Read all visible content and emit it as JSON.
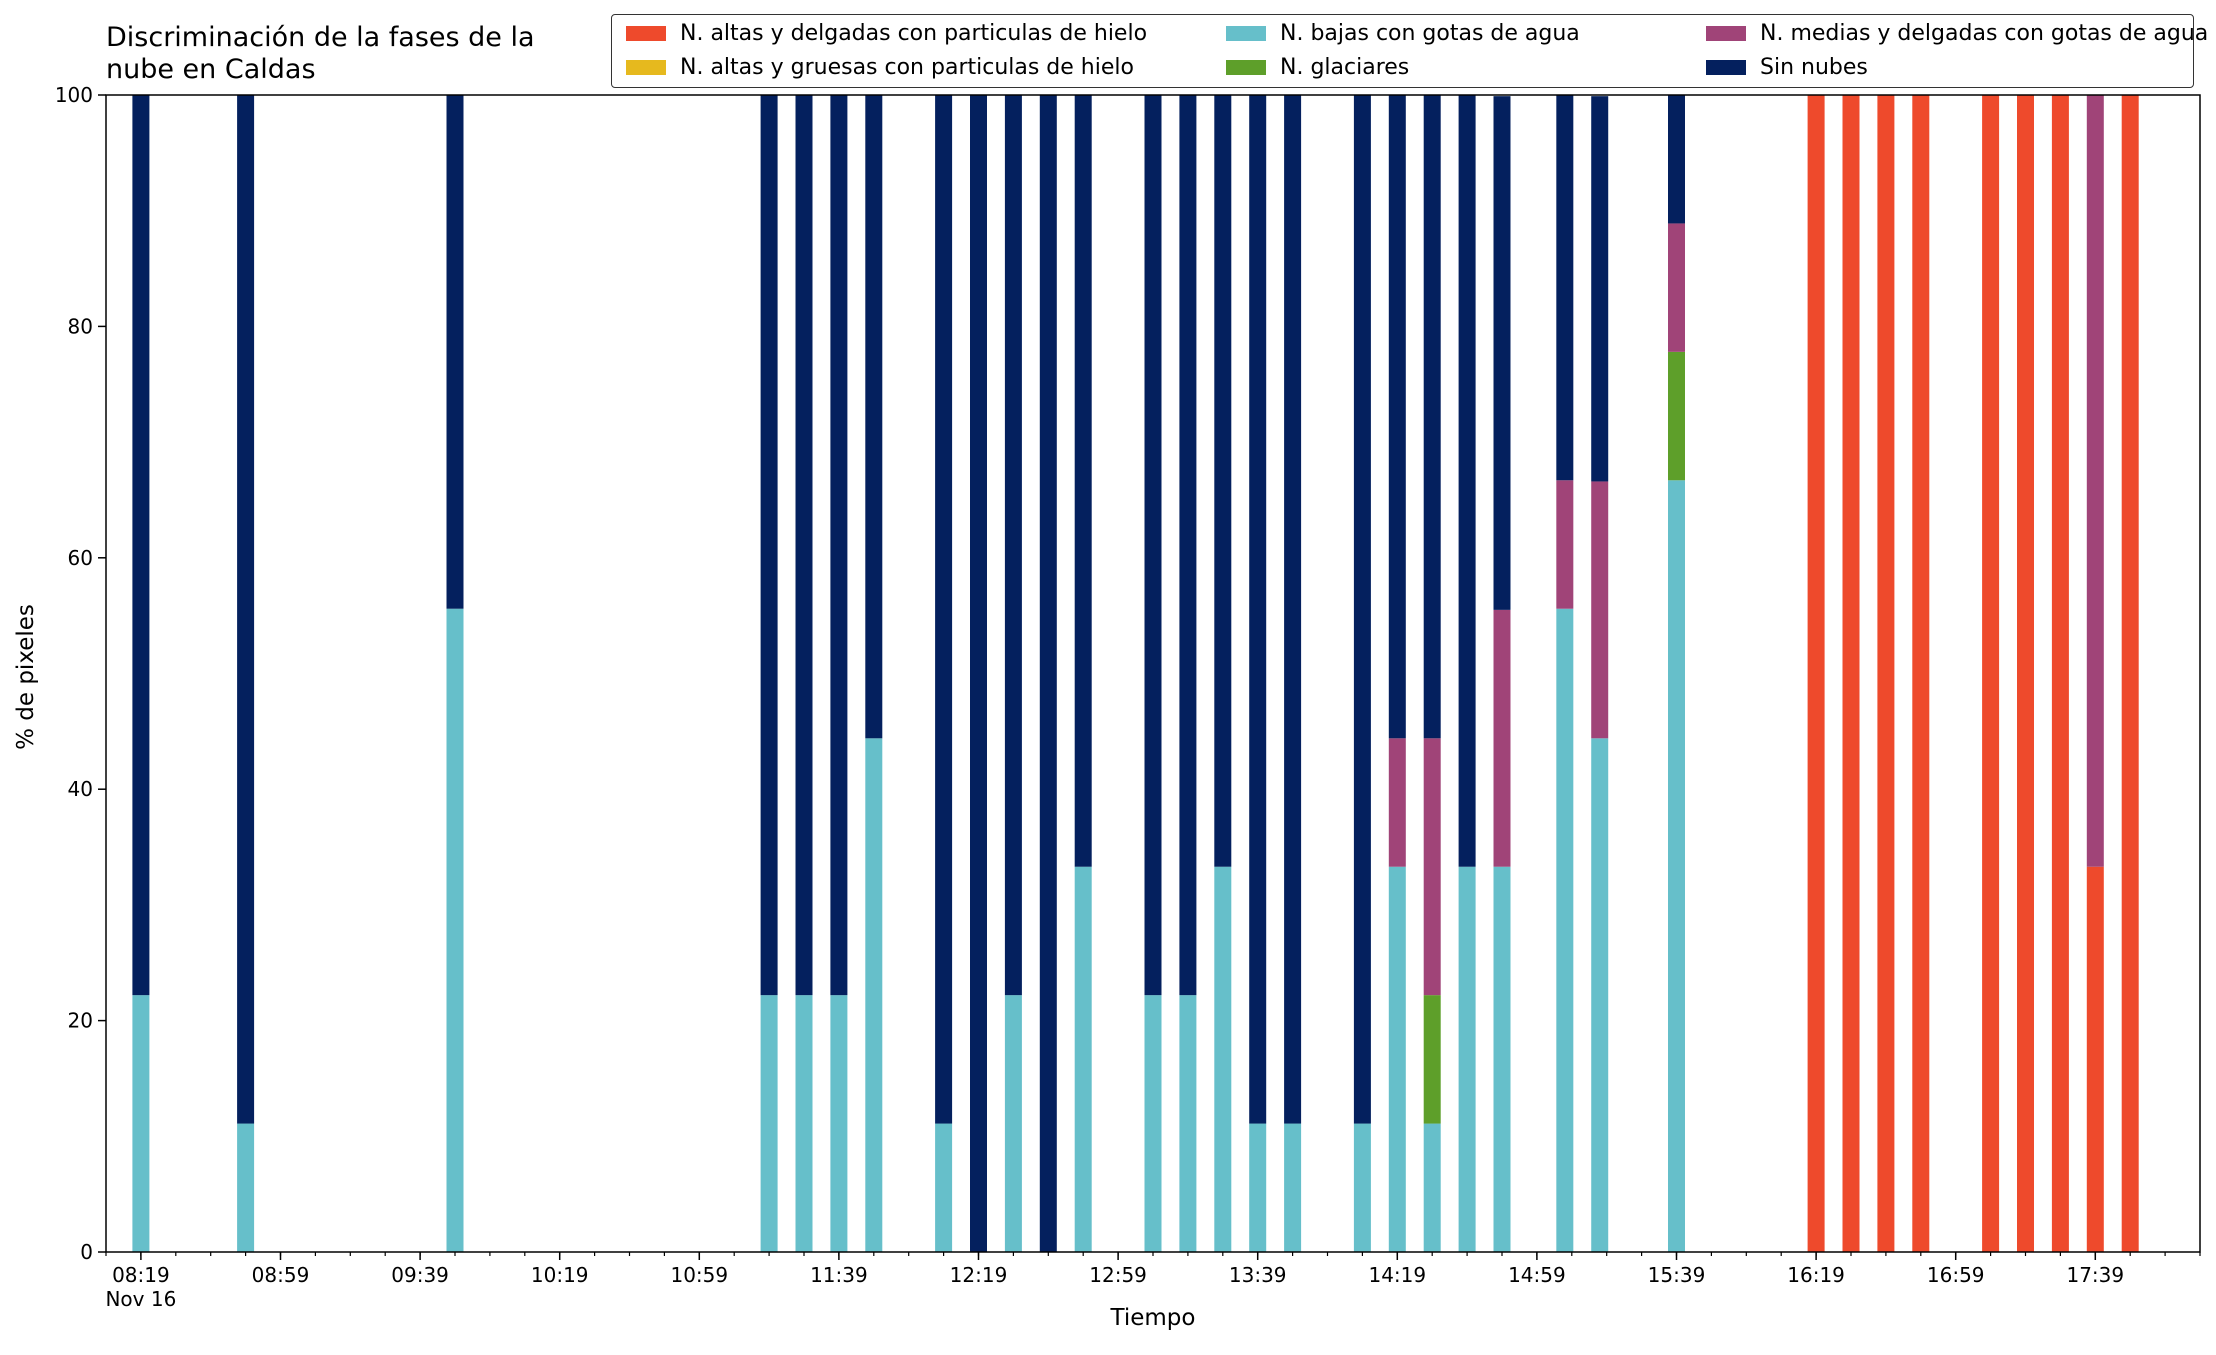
{
  "chart_data": {
    "type": "bar",
    "stacked": true,
    "title": "Discriminación de la fases de la\nnube en Caldas",
    "xlabel": "Tiempo",
    "ylabel": "% de pixeles",
    "ylim": [
      0,
      100
    ],
    "yticks": [
      0,
      20,
      40,
      60,
      80,
      100
    ],
    "grid": false,
    "legend_position": "top-right",
    "x_tick_labels": [
      "08:19",
      "08:59",
      "09:39",
      "10:19",
      "10:59",
      "11:39",
      "12:19",
      "12:59",
      "13:39",
      "14:19",
      "14:59",
      "15:39",
      "16:19",
      "16:59",
      "17:39"
    ],
    "x_date_label": "Nov 16",
    "x": [
      "08:19",
      "08:49",
      "09:49",
      "11:19",
      "11:29",
      "11:39",
      "11:49",
      "12:09",
      "12:19",
      "12:29",
      "12:39",
      "12:49",
      "13:09",
      "13:19",
      "13:29",
      "13:39",
      "13:49",
      "14:09",
      "14:19",
      "14:29",
      "14:39",
      "14:49",
      "15:07",
      "15:17",
      "15:39",
      "16:19",
      "16:29",
      "16:39",
      "16:49",
      "17:09",
      "17:19",
      "17:29",
      "17:39",
      "17:49"
    ],
    "series": [
      {
        "name": "N. altas y delgadas con particulas de hielo",
        "color": "#ee4a2c",
        "values": [
          0,
          0,
          0,
          0,
          0,
          0,
          0,
          0,
          0,
          0,
          0,
          0,
          0,
          0,
          0,
          0,
          0,
          0,
          0,
          0,
          0,
          0,
          0,
          0,
          0,
          100,
          100,
          100,
          100,
          100,
          100,
          100,
          33.3,
          100
        ]
      },
      {
        "name": "N. altas y gruesas con particulas de hielo",
        "color": "#e6b91e",
        "values": [
          0,
          0,
          0,
          0,
          0,
          0,
          0,
          0,
          0,
          0,
          0,
          0,
          0,
          0,
          0,
          0,
          0,
          0,
          0,
          0,
          0,
          0,
          0,
          0,
          0,
          0,
          0,
          0,
          0,
          0,
          0,
          0,
          0,
          0
        ]
      },
      {
        "name": "N. bajas con gotas de agua",
        "color": "#66bfca",
        "values": [
          22.2,
          11.1,
          55.6,
          22.2,
          22.2,
          22.2,
          44.4,
          11.1,
          0,
          22.2,
          0,
          33.3,
          22.2,
          22.2,
          33.3,
          11.1,
          11.1,
          11.1,
          33.3,
          11.1,
          33.3,
          33.3,
          55.6,
          44.4,
          66.7,
          0,
          0,
          0,
          0,
          0,
          0,
          0,
          0,
          0
        ]
      },
      {
        "name": "N. glaciares",
        "color": "#5e9f2a",
        "values": [
          0,
          0,
          0,
          0,
          0,
          0,
          0,
          0,
          0,
          0,
          0,
          0,
          0,
          0,
          0,
          0,
          0,
          0,
          0,
          11.1,
          0,
          0,
          0,
          0,
          11.1,
          0,
          0,
          0,
          0,
          0,
          0,
          0,
          0,
          0
        ]
      },
      {
        "name": "N. medias y delgadas con gotas de agua",
        "color": "#a04478",
        "values": [
          0,
          0,
          0,
          0,
          0,
          0,
          0,
          0,
          0,
          0,
          0,
          0,
          0,
          0,
          0,
          0,
          0,
          0,
          11.1,
          22.2,
          0,
          22.2,
          11.1,
          22.2,
          11.1,
          0,
          0,
          0,
          0,
          0,
          0,
          0,
          66.7,
          0
        ]
      },
      {
        "name": "Sin nubes",
        "color": "#04205e",
        "values": [
          77.8,
          88.9,
          44.4,
          77.8,
          77.8,
          77.8,
          55.6,
          88.9,
          100,
          77.8,
          100,
          66.7,
          77.8,
          77.8,
          66.7,
          88.9,
          88.9,
          88.9,
          55.6,
          55.6,
          66.7,
          44.4,
          33.3,
          33.3,
          11.1,
          0,
          0,
          0,
          0,
          0,
          0,
          0,
          0,
          0
        ]
      }
    ]
  }
}
